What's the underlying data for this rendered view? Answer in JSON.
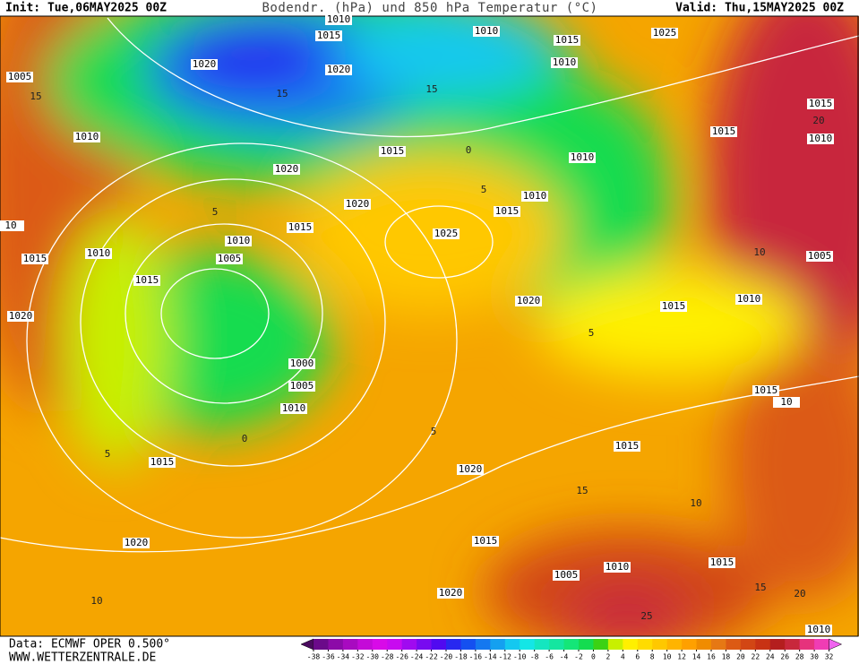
{
  "header": {
    "init": "Init: Tue,06MAY2025 00Z",
    "title": "Bodendr. (hPa) und 850 hPa Temperatur (°C)",
    "valid": "Valid: Thu,15MAY2025 00Z"
  },
  "footer": {
    "source": "Data: ECMWF OPER 0.500°",
    "website": "WWW.WETTERZENTRALE.DE"
  },
  "colorbar": {
    "ticks": [
      -38,
      -36,
      -34,
      -32,
      -30,
      -28,
      -26,
      -24,
      -22,
      -20,
      -18,
      -16,
      -14,
      -12,
      -10,
      -8,
      -6,
      -4,
      -2,
      0,
      2,
      4,
      6,
      8,
      10,
      12,
      14,
      16,
      18,
      20,
      22,
      24,
      26,
      28,
      30,
      32
    ],
    "colors": [
      "#4a0a5e",
      "#6b0a8a",
      "#8c0aa8",
      "#a80ac0",
      "#c40ad8",
      "#d80ae8",
      "#c80af0",
      "#a00af0",
      "#780af0",
      "#500af0",
      "#2828f0",
      "#1450f0",
      "#1478f0",
      "#14a0f0",
      "#14c8f0",
      "#14e6e6",
      "#14e6c0",
      "#14e6a0",
      "#14e678",
      "#14dc50",
      "#3cd214",
      "#c8f000",
      "#fff000",
      "#ffdc00",
      "#ffc800",
      "#ffb400",
      "#ffa000",
      "#f08c00",
      "#e67814",
      "#dc5a14",
      "#d24614",
      "#c83214",
      "#b41e1e",
      "#c8283c",
      "#e6327c",
      "#f03cb4",
      "#f064f0"
    ]
  },
  "isobar_labels": [
    "1010",
    "1015",
    "1010",
    "1015",
    "1025",
    "1020",
    "1020",
    "1010",
    "1005",
    "1010",
    "1015",
    "1015",
    "1010",
    "1015",
    "1010",
    "1020",
    "1020",
    "1010",
    "1015",
    "1015",
    "1025",
    "1010",
    "1015",
    "1010",
    "1005",
    "1015",
    "1005",
    "1020",
    "1010",
    "1015",
    "1020",
    "1000",
    "1005",
    "1010",
    "1015",
    "10",
    "1015",
    "1015",
    "1020",
    "1015",
    "1020",
    "1015",
    "1010",
    "1005",
    "1020",
    "1010",
    "10"
  ],
  "temperature_labels": [
    "15",
    "5",
    "5",
    "0",
    "15",
    "15",
    "0",
    "5",
    "5",
    "10",
    "15",
    "10",
    "20",
    "15",
    "25",
    "10",
    "20",
    "5"
  ]
}
